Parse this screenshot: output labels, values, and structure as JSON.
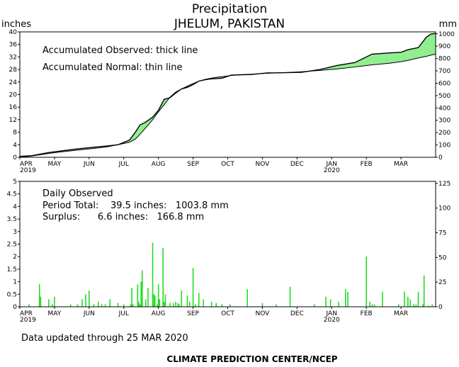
{
  "header": {
    "title": "Precipitation",
    "subtitle": "JHELUM, PAKISTAN",
    "left_unit": "inches",
    "right_unit": "mm"
  },
  "annotations": {
    "observed_label": "Accumulated Observed: thick line",
    "normal_label": "Accumulated Normal: thin line",
    "daily_title": "Daily Observed",
    "period_total": "Period Total:    39.5 inches:   1003.8 mm",
    "surplus": "Surplus:      6.6 inches:   166.8 mm"
  },
  "footer": {
    "updated": "Data updated through 25 MAR 2020",
    "credit": "CLIMATE PREDICTION CENTER/NCEP"
  },
  "colors": {
    "surplus_fill": "#90ee90",
    "deficit_fill": "#c8a0a0",
    "daily_bar": "#22dd22",
    "line": "#000000"
  },
  "chart_data": [
    {
      "type": "area",
      "title": "Precipitation",
      "subtitle": "JHELUM, PAKISTAN",
      "x_ticks": [
        "APR",
        "MAY",
        "JUN",
        "JUL",
        "AUG",
        "SEP",
        "OCT",
        "NOV",
        "DEC",
        "JAN",
        "FEB",
        "MAR"
      ],
      "x_year_labels": [
        {
          "under": "APR",
          "text": "2019"
        },
        {
          "under": "JAN",
          "text": "2020"
        }
      ],
      "x_range_days": [
        0,
        360
      ],
      "y_left_label": "inches",
      "y_left_range": [
        0,
        40
      ],
      "y_left_ticks": [
        0,
        4,
        8,
        12,
        16,
        20,
        24,
        28,
        32,
        36,
        40
      ],
      "y_right_label": "mm",
      "y_right_range": [
        0,
        1016
      ],
      "y_right_ticks": [
        0,
        100,
        200,
        300,
        400,
        500,
        600,
        700,
        800,
        900,
        1000
      ],
      "series": [
        {
          "name": "Accumulated Observed",
          "x": [
            0,
            10,
            25,
            35,
            50,
            61,
            75,
            85,
            95,
            100,
            104,
            108,
            115,
            120,
            125,
            130,
            135,
            140,
            145,
            150,
            155,
            160,
            165,
            170,
            175,
            183,
            190,
            200,
            214,
            230,
            244,
            260,
            275,
            290,
            305,
            320,
            330,
            336,
            345,
            352,
            356,
            360
          ],
          "y": [
            0.3,
            0.5,
            1.5,
            2.0,
            2.7,
            3.1,
            3.6,
            4.0,
            5.5,
            8.0,
            10.3,
            11.0,
            12.8,
            15.0,
            18.5,
            19.0,
            20.5,
            21.8,
            22.3,
            23.2,
            24.3,
            24.7,
            25.0,
            25.1,
            25.2,
            26.2,
            26.3,
            26.4,
            26.9,
            27.0,
            27.1,
            28.0,
            29.3,
            30.2,
            32.9,
            33.3,
            33.5,
            34.3,
            35.0,
            38.3,
            39.3,
            39.5
          ]
        },
        {
          "name": "Accumulated Normal",
          "x": [
            0,
            10,
            25,
            35,
            50,
            61,
            75,
            85,
            95,
            100,
            104,
            108,
            115,
            120,
            125,
            130,
            135,
            140,
            145,
            150,
            155,
            160,
            165,
            170,
            175,
            183,
            190,
            200,
            214,
            230,
            244,
            260,
            275,
            290,
            305,
            320,
            330,
            336,
            345,
            352,
            356,
            360
          ],
          "y": [
            0.0,
            0.4,
            1.2,
            1.7,
            2.3,
            2.7,
            3.3,
            4.0,
            4.8,
            5.8,
            7.3,
            9.0,
            12.0,
            14.5,
            16.8,
            19.2,
            20.8,
            21.8,
            22.7,
            23.5,
            24.3,
            24.8,
            25.2,
            25.5,
            25.7,
            26.1,
            26.3,
            26.5,
            26.8,
            27.0,
            27.3,
            27.7,
            28.2,
            28.8,
            29.5,
            30.0,
            30.5,
            30.9,
            31.7,
            32.2,
            32.6,
            32.9
          ]
        }
      ],
      "annotations": [
        "Accumulated Observed: thick line",
        "Accumulated Normal: thin line"
      ]
    },
    {
      "type": "bar",
      "title": "Daily Observed",
      "x_ticks": [
        "APR",
        "MAY",
        "JUN",
        "JUL",
        "AUG",
        "SEP",
        "OCT",
        "NOV",
        "DEC",
        "JAN",
        "FEB",
        "MAR"
      ],
      "x_year_labels": [
        {
          "under": "APR",
          "text": "2019"
        },
        {
          "under": "JAN",
          "text": "2020"
        }
      ],
      "x_range_days": [
        0,
        360
      ],
      "y_left_range": [
        0,
        5
      ],
      "y_left_ticks": [
        0,
        0.5,
        1,
        1.5,
        2,
        2.5,
        3,
        3.5,
        4,
        4.5,
        5
      ],
      "y_right_range": [
        0,
        127
      ],
      "y_right_ticks": [
        0,
        25,
        50,
        75,
        100,
        125
      ],
      "x": [
        8,
        17,
        18,
        25,
        28,
        30,
        44,
        50,
        54,
        57,
        60,
        64,
        68,
        71,
        74,
        78,
        85,
        90,
        96,
        97,
        98,
        102,
        103,
        104,
        105,
        106,
        109,
        111,
        115,
        116,
        117,
        119,
        120,
        121,
        124,
        125,
        126,
        130,
        133,
        135,
        137,
        138,
        140,
        145,
        147,
        150,
        152,
        155,
        159,
        166,
        170,
        175,
        182,
        197,
        210,
        222,
        234,
        255,
        265,
        269,
        276,
        282,
        284,
        300,
        303,
        305,
        307,
        314,
        328,
        333,
        336,
        338,
        341,
        343,
        345,
        349,
        350,
        354,
        357
      ],
      "values": [
        0.1,
        0.9,
        0.4,
        0.3,
        0.1,
        0.4,
        0.1,
        0.1,
        0.3,
        0.5,
        0.65,
        0.1,
        0.2,
        0.1,
        0.1,
        0.3,
        0.15,
        0.1,
        0.1,
        0.75,
        0.1,
        0.9,
        0.2,
        0.1,
        1.0,
        1.45,
        0.3,
        0.75,
        2.55,
        0.5,
        0.45,
        0.1,
        0.9,
        0.3,
        2.35,
        0.2,
        0.5,
        0.15,
        0.15,
        0.2,
        0.15,
        0.1,
        0.65,
        0.45,
        0.2,
        1.55,
        0.1,
        0.55,
        0.3,
        0.2,
        0.15,
        0.1,
        0.1,
        0.7,
        0.15,
        0.1,
        0.8,
        0.1,
        0.4,
        0.3,
        0.2,
        0.7,
        0.6,
        2.0,
        0.2,
        0.1,
        0.1,
        0.6,
        0.1,
        0.6,
        0.4,
        0.3,
        0.1,
        0.1,
        0.6,
        0.1,
        1.25,
        0.05,
        0.1
      ],
      "annotations": [
        "Daily Observed",
        "Period Total:    39.5 inches:   1003.8 mm",
        "Surplus:      6.6 inches:   166.8 mm"
      ]
    }
  ]
}
